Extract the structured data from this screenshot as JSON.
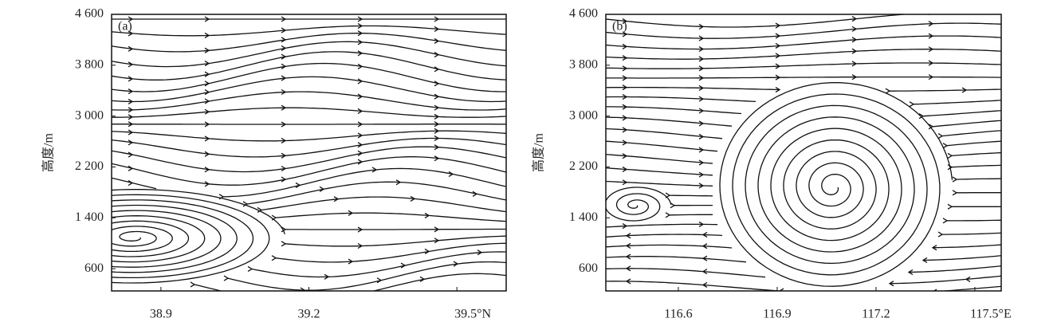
{
  "chart_data": [
    {
      "type": "streamline",
      "panel_label": "(a)",
      "ylabel": "高度/m",
      "xlim": [
        38.8,
        39.6
      ],
      "xticks": [
        38.9,
        39.2,
        {
          "value": 39.5,
          "label": "39.5°N"
        }
      ],
      "ylim": [
        250,
        4600
      ],
      "yticks": [
        {
          "value": 4600,
          "label": "4 600"
        },
        {
          "value": 3800,
          "label": "3 800"
        },
        {
          "value": 3000,
          "label": "3 000"
        },
        {
          "value": 2200,
          "label": "2 200"
        },
        {
          "value": 1400,
          "label": "1 400"
        },
        600
      ]
    },
    {
      "type": "streamline",
      "panel_label": "(b)",
      "ylabel": "高度/m",
      "xlim": [
        116.38,
        117.58
      ],
      "xticks": [
        116.6,
        116.9,
        117.2,
        {
          "value": 117.5,
          "label": "117.5°E"
        }
      ],
      "ylim": [
        250,
        4600
      ],
      "yticks": [
        {
          "value": 4600,
          "label": "4 600"
        },
        {
          "value": 3800,
          "label": "3 800"
        },
        {
          "value": 3000,
          "label": "3 000"
        },
        {
          "value": 2200,
          "label": "2 200"
        },
        {
          "value": 1400,
          "label": "1 400"
        },
        600
      ]
    }
  ]
}
